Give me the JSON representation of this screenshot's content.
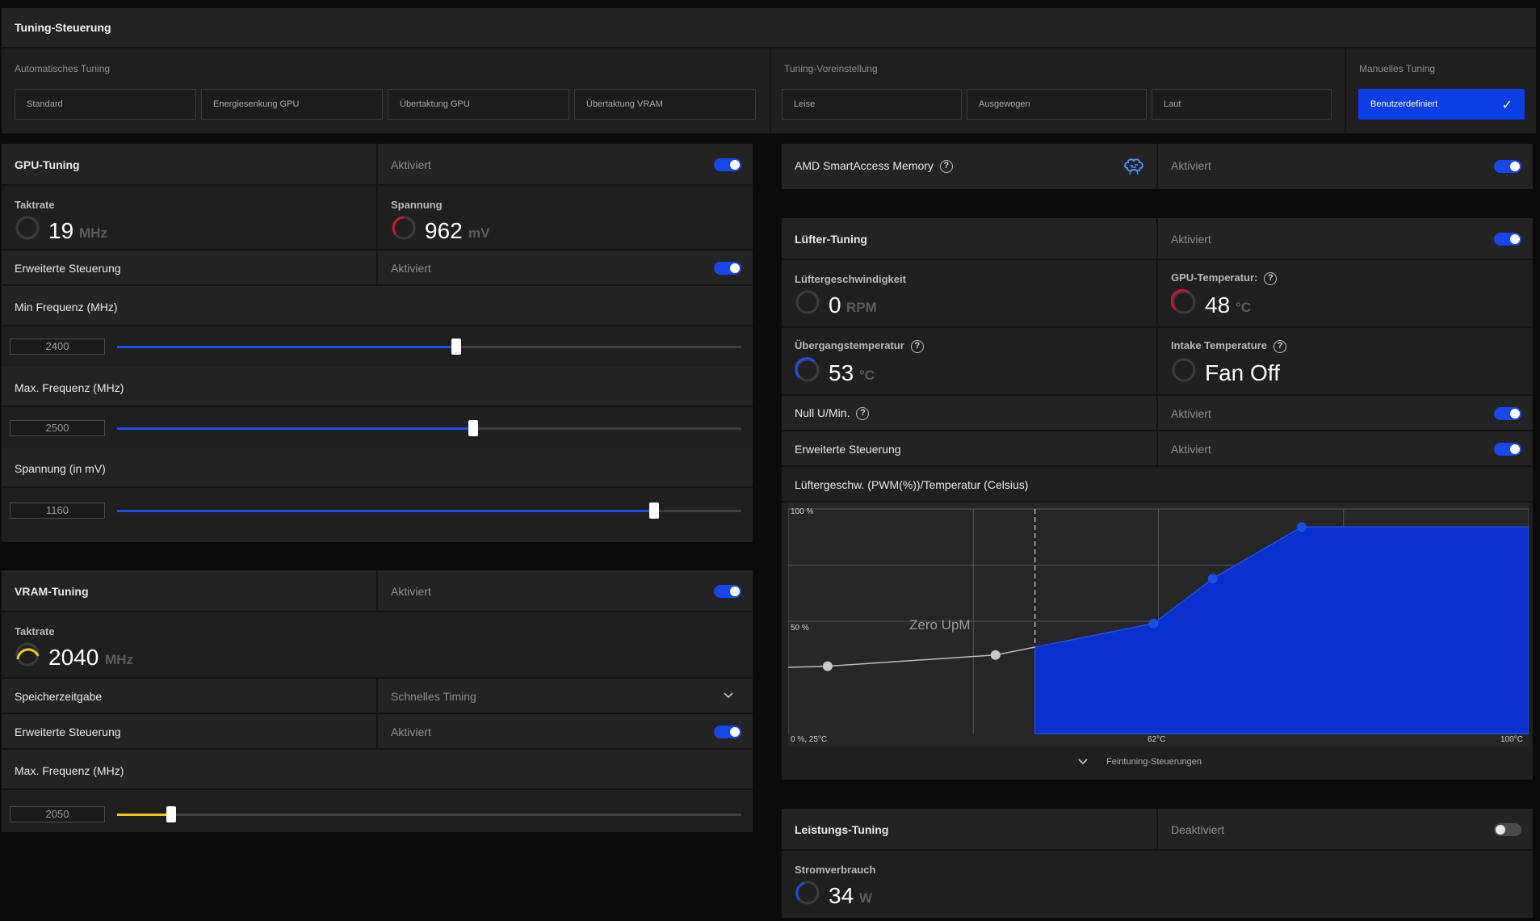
{
  "tuning_control": {
    "title": "Tuning-Steuerung",
    "auto_label": "Automatisches Tuning",
    "auto_presets": [
      "Standard",
      "Energiesenkung GPU",
      "Übertaktung GPU",
      "Übertaktung VRAM"
    ],
    "preset_label": "Tuning-Voreinstellung",
    "presets": [
      "Leise",
      "Ausgewogen",
      "Laut"
    ],
    "manual_label": "Manuelles Tuning",
    "manual_value": "Benutzerdefiniert"
  },
  "gpu_tuning": {
    "title": "GPU-Tuning",
    "status": "Aktiviert",
    "clock": {
      "label": "Taktrate",
      "value": "19",
      "unit": "MHz"
    },
    "voltage": {
      "label": "Spannung",
      "value": "962",
      "unit": "mV"
    },
    "advanced": {
      "label": "Erweiterte Steuerung",
      "status": "Aktiviert"
    },
    "min_freq": {
      "label": "Min Frequenz (MHz)",
      "value": "2400",
      "fraction": 0.543
    },
    "max_freq": {
      "label": "Max. Frequenz (MHz)",
      "value": "2500",
      "fraction": 0.571
    },
    "voltage_slider": {
      "label": "Spannung (in mV)",
      "value": "1160",
      "fraction": 0.86
    }
  },
  "vram_tuning": {
    "title": "VRAM-Tuning",
    "status": "Aktiviert",
    "clock": {
      "label": "Taktrate",
      "value": "2040",
      "unit": "MHz"
    },
    "memory_timing": {
      "label": "Speicherzeitgabe",
      "value": "Schnelles Timing"
    },
    "advanced": {
      "label": "Erweiterte Steuerung",
      "status": "Aktiviert"
    },
    "max_freq": {
      "label": "Max. Frequenz (MHz)",
      "value": "2050",
      "fraction": 0.087
    }
  },
  "sam": {
    "label": "AMD SmartAccess Memory",
    "status": "Aktiviert"
  },
  "fan_tuning": {
    "title": "Lüfter-Tuning",
    "status": "Aktiviert",
    "fan_speed": {
      "label": "Lüftergeschwindigkeit",
      "value": "0",
      "unit": "RPM"
    },
    "gpu_temp": {
      "label": "GPU-Temperatur:",
      "value": "48",
      "unit": "°C"
    },
    "junction_temp": {
      "label": "Übergangstemperatur",
      "value": "53",
      "unit": "°C"
    },
    "intake_temp": {
      "label": "Intake Temperature",
      "value": "Fan Off"
    },
    "zero_rpm": {
      "label": "Null U/Min.",
      "status": "Aktiviert"
    },
    "advanced": {
      "label": "Erweiterte Steuerung",
      "status": "Aktiviert"
    },
    "curve_title": "Lüftergeschw. (PWM(%))/Temperatur (Celsius)",
    "fine_tuning": "Feintuning-Steuerungen"
  },
  "chart_data": {
    "type": "area",
    "y_max_label": "100 %",
    "y_mid_label": "50 %",
    "origin_label": "0 %, 25°C",
    "x_mid_label": "62°C",
    "x_max_label": "100°C",
    "zero_rpm_label": "Zero UpM",
    "xlim": [
      25,
      100
    ],
    "ylim": [
      0,
      100
    ],
    "zero_rpm_threshold": 50,
    "points": [
      {
        "x": 29,
        "y": 30
      },
      {
        "x": 46,
        "y": 35
      },
      {
        "x": 62,
        "y": 49
      },
      {
        "x": 68,
        "y": 69
      },
      {
        "x": 77,
        "y": 92
      }
    ],
    "plateau_y": 92
  },
  "power_tuning": {
    "title": "Leistungs-Tuning",
    "status": "Deaktiviert",
    "power": {
      "label": "Stromverbrauch",
      "value": "34",
      "unit": "W"
    }
  },
  "colors": {
    "accent": "#1548e8",
    "danger": "#d0142c",
    "vram": "#f5c518",
    "curve_fill": "#0a2fcf"
  }
}
